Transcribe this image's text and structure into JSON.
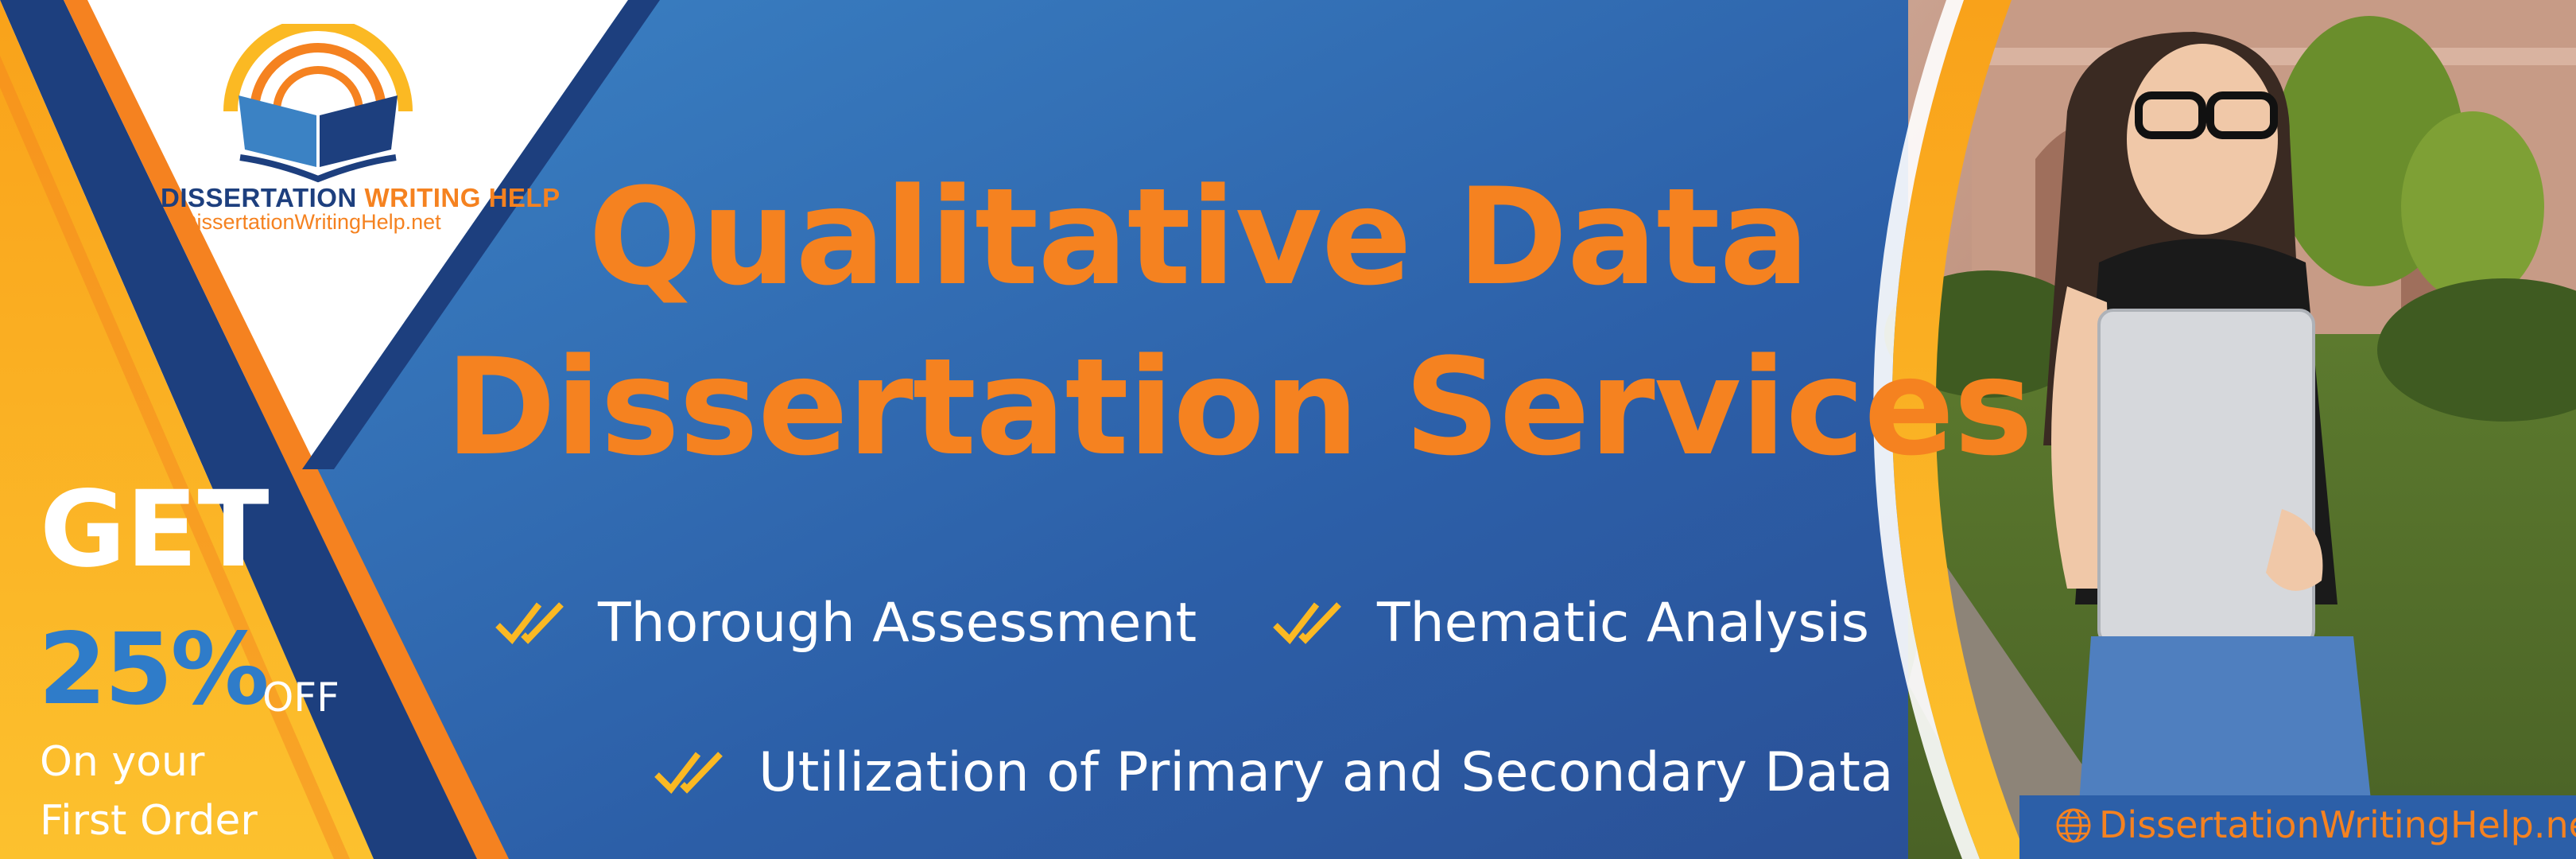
{
  "logo": {
    "name_part1": "DISSERTATION ",
    "name_part2": "WRITING HELP",
    "url": "DissertationWritingHelp.net",
    "icon": "open-book-sunrise-icon"
  },
  "headline": {
    "line1": "Qualitative Data",
    "line2": "Dissertation Services"
  },
  "features": [
    "Thorough Assessment",
    "Thematic Analysis",
    "Utilization of Primary and Secondary Data"
  ],
  "feature_icon": "double-check-icon",
  "promo": {
    "get": "GET",
    "percent": "25%",
    "off": "OFF",
    "line1": "On your",
    "line2": "First Order"
  },
  "footer": {
    "url": "DissertationWritingHelp.net",
    "icon": "globe-icon"
  },
  "photo": {
    "icon": "student-with-laptop-photo"
  },
  "colors": {
    "blue": "#2c5fa8",
    "navy": "#1d3f7e",
    "orange": "#f58220",
    "yellow": "#fbb923",
    "white": "#ffffff"
  }
}
